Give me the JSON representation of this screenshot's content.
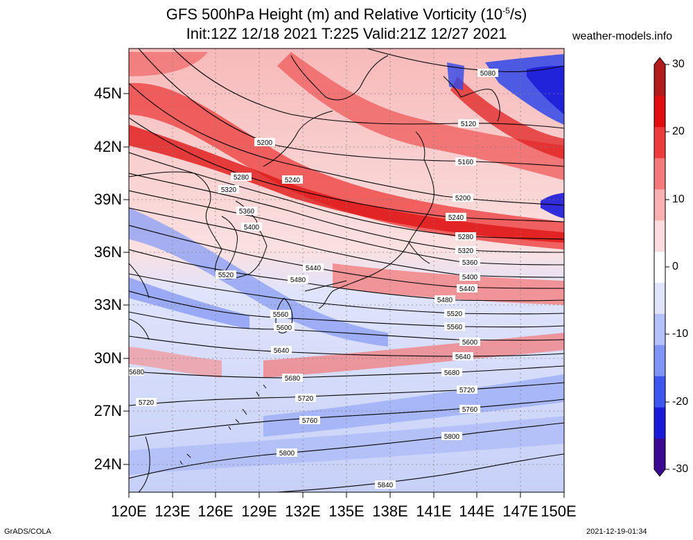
{
  "title_line1": "GFS 500hPa Height (m) and Relative Vorticity (10",
  "title_exp": "-5",
  "title_line1_end": "/s)",
  "title_line2": "Init:12Z 12/18 2021 T:225 Valid:21Z 12/27 2021",
  "website": "weather-models.info",
  "credit_left": "GrADS/COLA",
  "credit_right": "2021-12-19-01:34",
  "lat_labels": [
    "45N",
    "42N",
    "39N",
    "36N",
    "33N",
    "30N",
    "27N",
    "24N"
  ],
  "lon_labels": [
    "120E",
    "123E",
    "126E",
    "129E",
    "132E",
    "135E",
    "138E",
    "141E",
    "144E",
    "147E",
    "150E"
  ],
  "colorbar": {
    "ticks": [
      "30",
      "20",
      "10",
      "0",
      "-10",
      "-20",
      "-30"
    ],
    "colors": [
      "#3b0a8f",
      "#1a1ad9",
      "#3f55f0",
      "#7f95f7",
      "#b4c0f9",
      "#dfe4fb",
      "#ffffff",
      "#fbdcdc",
      "#f8b0b0",
      "#f47a7a",
      "#ee3b3b",
      "#e01010",
      "#b01c1c"
    ]
  },
  "contour_labels": [
    "5080",
    "5120",
    "5160",
    "5200",
    "5240",
    "5280",
    "5320",
    "5360",
    "5400",
    "5440",
    "5480",
    "5520",
    "5560",
    "5600",
    "5640",
    "5680",
    "5720",
    "5760",
    "5800",
    "5840"
  ]
}
